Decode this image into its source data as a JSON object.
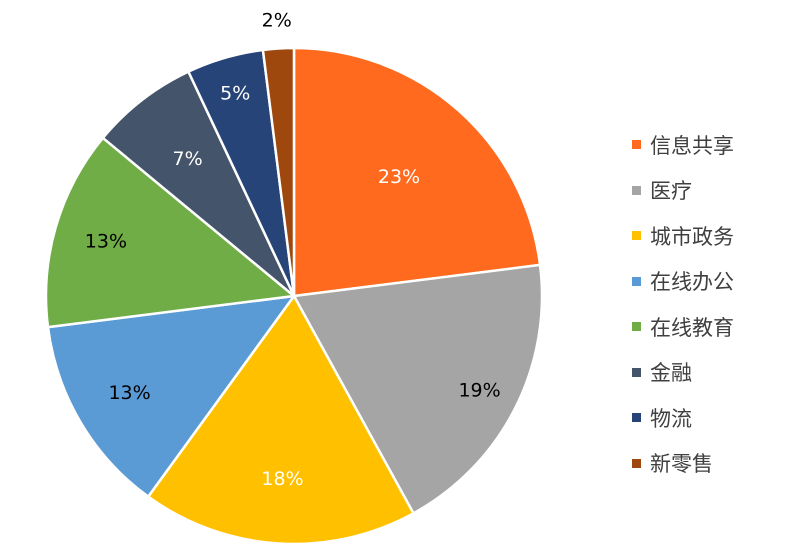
{
  "chart_data": {
    "type": "pie",
    "title": "",
    "categories": [
      "信息共享",
      "医疗",
      "城市政务",
      "在线办公",
      "在线教育",
      "金融",
      "物流",
      "新零售"
    ],
    "values": [
      23,
      19,
      18,
      13,
      13,
      7,
      5,
      2
    ],
    "labels": [
      "23%",
      "19%",
      "18%",
      "13%",
      "13%",
      "7%",
      "5%",
      "2%"
    ],
    "colors": [
      "#ff6a1f",
      "#a5a5a5",
      "#ffc000",
      "#5b9bd5",
      "#70ad47",
      "#44546a",
      "#264478",
      "#9e480e"
    ],
    "label_colors": [
      "#ffffff",
      "#000000",
      "#ffffff",
      "#000000",
      "#000000",
      "#ffffff",
      "#ffffff",
      "#000000"
    ],
    "start_angle_deg": 0,
    "direction": "clockwise",
    "legend_position": "right"
  }
}
